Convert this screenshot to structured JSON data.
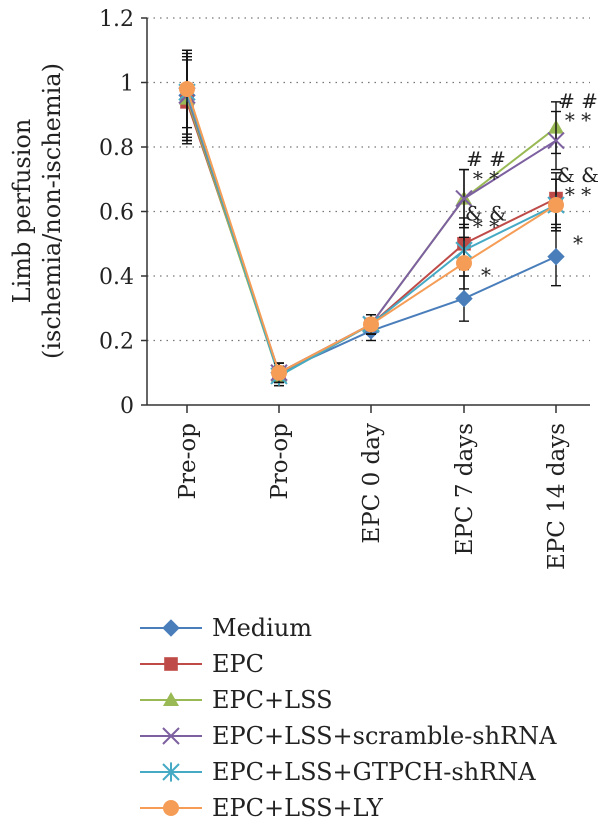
{
  "chart_data": {
    "type": "line",
    "title": "",
    "xlabel": "",
    "ylabel": "Limb perfusion",
    "ylabel_sub": "(ischemia/non-ischemia)",
    "categories": [
      "Pre-op",
      "Pro-op",
      "EPC 0 day",
      "EPC 7 days",
      "EPC 14 days"
    ],
    "ylim": [
      0,
      1.2
    ],
    "yticks": [
      "0",
      "0.2",
      "0.4",
      "0.6",
      "0.8",
      "1",
      "1.2"
    ],
    "ytick_values": [
      0,
      0.2,
      0.4,
      0.6,
      0.8,
      1.0,
      1.2
    ],
    "grid": "horizontal dotted",
    "legend_position": "bottom",
    "series": [
      {
        "name": "Medium",
        "color": "#4a7ebb",
        "marker": "diamond",
        "values": [
          0.96,
          0.1,
          0.23,
          0.33,
          0.46
        ],
        "errors": [
          0.14,
          0.03,
          0.03,
          0.07,
          0.09
        ]
      },
      {
        "name": "EPC",
        "color": "#be4b48",
        "marker": "square",
        "values": [
          0.94,
          0.1,
          0.25,
          0.5,
          0.64
        ],
        "errors": [
          0.13,
          0.03,
          0.03,
          0.08,
          0.08
        ]
      },
      {
        "name": "EPC+LSS",
        "color": "#98b954",
        "marker": "triangle",
        "values": [
          0.95,
          0.09,
          0.25,
          0.64,
          0.86
        ],
        "errors": [
          0.13,
          0.03,
          0.03,
          0.09,
          0.08
        ]
      },
      {
        "name": "EPC+LSS+scramble-shRNA",
        "color": "#7d60a0",
        "marker": "x",
        "values": [
          0.96,
          0.1,
          0.25,
          0.64,
          0.82
        ],
        "errors": [
          0.13,
          0.03,
          0.03,
          0.09,
          0.09
        ]
      },
      {
        "name": "EPC+LSS+GTPCH-shRNA",
        "color": "#46aac5",
        "marker": "star",
        "values": [
          0.97,
          0.09,
          0.25,
          0.48,
          0.62
        ],
        "errors": [
          0.13,
          0.03,
          0.03,
          0.08,
          0.08
        ]
      },
      {
        "name": "EPC+LSS+LY",
        "color": "#f59d56",
        "marker": "circle",
        "values": [
          0.98,
          0.1,
          0.25,
          0.44,
          0.62
        ],
        "errors": [
          0.12,
          0.03,
          0.03,
          0.08,
          0.08
        ]
      }
    ],
    "annotations": [
      {
        "category": "EPC 7 days",
        "y": 0.76,
        "text": "# #"
      },
      {
        "category": "EPC 7 days",
        "y": 0.7,
        "text": "* *"
      },
      {
        "category": "EPC 7 days",
        "y": 0.59,
        "text": "& &"
      },
      {
        "category": "EPC 7 days",
        "y": 0.55,
        "text": "* *"
      },
      {
        "category": "EPC 7 days",
        "y": 0.4,
        "text": "*"
      },
      {
        "category": "EPC 14 days",
        "y": 0.94,
        "text": "# #"
      },
      {
        "category": "EPC 14 days",
        "y": 0.88,
        "text": "* *"
      },
      {
        "category": "EPC 14 days",
        "y": 0.71,
        "text": "& &"
      },
      {
        "category": "EPC 14 days",
        "y": 0.65,
        "text": "* *"
      },
      {
        "category": "EPC 14 days",
        "y": 0.5,
        "text": "*"
      }
    ]
  }
}
